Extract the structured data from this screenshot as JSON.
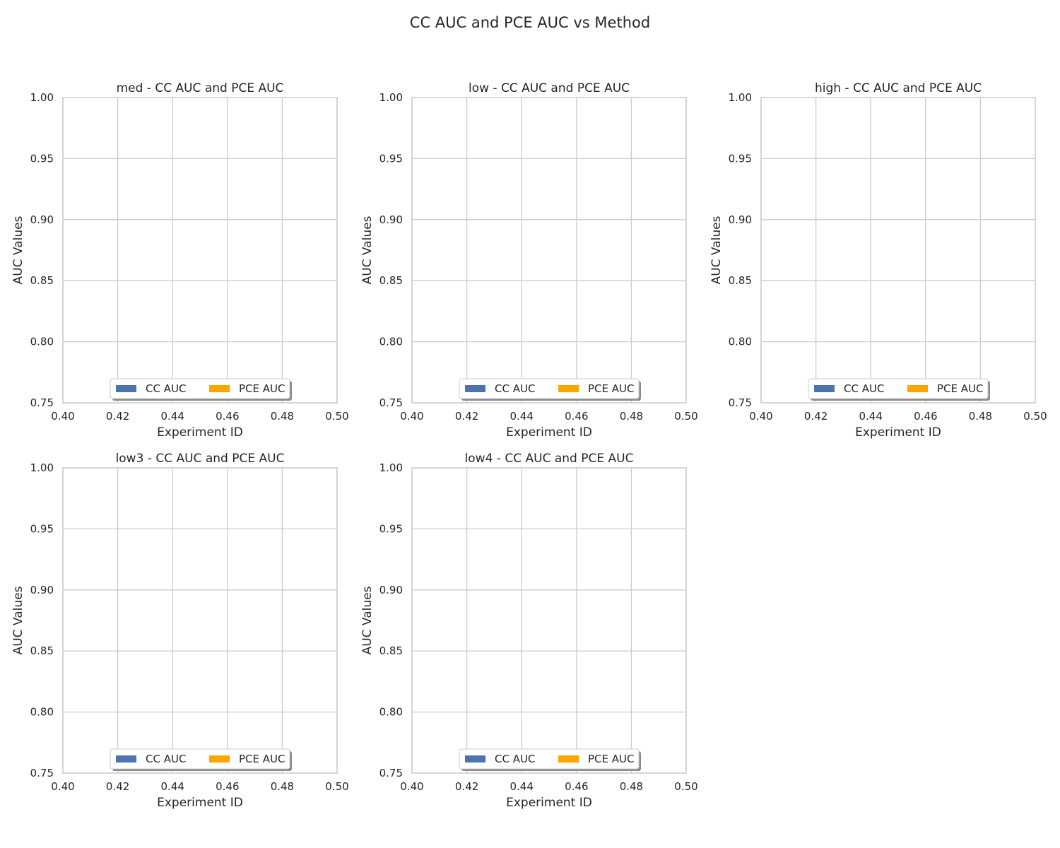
{
  "figure": {
    "title": "CC AUC and PCE AUC vs Method"
  },
  "colors": {
    "cc": "#4c72b0",
    "pce": "#ffa500",
    "grid": "#cccccc",
    "text": "#262626"
  },
  "chart_data": [
    {
      "type": "bar",
      "title": "med - CC AUC and PCE AUC",
      "xlabel": "Experiment ID",
      "ylabel": "AUC Values",
      "xlim": [
        0.4,
        0.5
      ],
      "ylim": [
        0.75,
        1.0
      ],
      "xticks": [
        "0.40",
        "0.42",
        "0.44",
        "0.46",
        "0.48",
        "0.50"
      ],
      "yticks": [
        "0.75",
        "0.80",
        "0.85",
        "0.90",
        "0.95",
        "1.00"
      ],
      "grid": true,
      "legend_position": "lower center",
      "series": [
        {
          "name": "CC AUC",
          "color": "#4c72b0",
          "values": []
        },
        {
          "name": "PCE AUC",
          "color": "#ffa500",
          "values": []
        }
      ]
    },
    {
      "type": "bar",
      "title": "low - CC AUC and PCE AUC",
      "xlabel": "Experiment ID",
      "ylabel": "AUC Values",
      "xlim": [
        0.4,
        0.5
      ],
      "ylim": [
        0.75,
        1.0
      ],
      "xticks": [
        "0.40",
        "0.42",
        "0.44",
        "0.46",
        "0.48",
        "0.50"
      ],
      "yticks": [
        "0.75",
        "0.80",
        "0.85",
        "0.90",
        "0.95",
        "1.00"
      ],
      "grid": true,
      "legend_position": "lower center",
      "series": [
        {
          "name": "CC AUC",
          "color": "#4c72b0",
          "values": []
        },
        {
          "name": "PCE AUC",
          "color": "#ffa500",
          "values": []
        }
      ]
    },
    {
      "type": "bar",
      "title": "high - CC AUC and PCE AUC",
      "xlabel": "Experiment ID",
      "ylabel": "AUC Values",
      "xlim": [
        0.4,
        0.5
      ],
      "ylim": [
        0.75,
        1.0
      ],
      "xticks": [
        "0.40",
        "0.42",
        "0.44",
        "0.46",
        "0.48",
        "0.50"
      ],
      "yticks": [
        "0.75",
        "0.80",
        "0.85",
        "0.90",
        "0.95",
        "1.00"
      ],
      "grid": true,
      "legend_position": "lower center",
      "series": [
        {
          "name": "CC AUC",
          "color": "#4c72b0",
          "values": []
        },
        {
          "name": "PCE AUC",
          "color": "#ffa500",
          "values": []
        }
      ]
    },
    {
      "type": "bar",
      "title": "low3 - CC AUC and PCE AUC",
      "xlabel": "Experiment ID",
      "ylabel": "AUC Values",
      "xlim": [
        0.4,
        0.5
      ],
      "ylim": [
        0.75,
        1.0
      ],
      "xticks": [
        "0.40",
        "0.42",
        "0.44",
        "0.46",
        "0.48",
        "0.50"
      ],
      "yticks": [
        "0.75",
        "0.80",
        "0.85",
        "0.90",
        "0.95",
        "1.00"
      ],
      "grid": true,
      "legend_position": "lower center",
      "series": [
        {
          "name": "CC AUC",
          "color": "#4c72b0",
          "values": []
        },
        {
          "name": "PCE AUC",
          "color": "#ffa500",
          "values": []
        }
      ]
    },
    {
      "type": "bar",
      "title": "low4 - CC AUC and PCE AUC",
      "xlabel": "Experiment ID",
      "ylabel": "AUC Values",
      "xlim": [
        0.4,
        0.5
      ],
      "ylim": [
        0.75,
        1.0
      ],
      "xticks": [
        "0.40",
        "0.42",
        "0.44",
        "0.46",
        "0.48",
        "0.50"
      ],
      "yticks": [
        "0.75",
        "0.80",
        "0.85",
        "0.90",
        "0.95",
        "1.00"
      ],
      "grid": true,
      "legend_position": "lower center",
      "series": [
        {
          "name": "CC AUC",
          "color": "#4c72b0",
          "values": []
        },
        {
          "name": "PCE AUC",
          "color": "#ffa500",
          "values": []
        }
      ]
    }
  ]
}
